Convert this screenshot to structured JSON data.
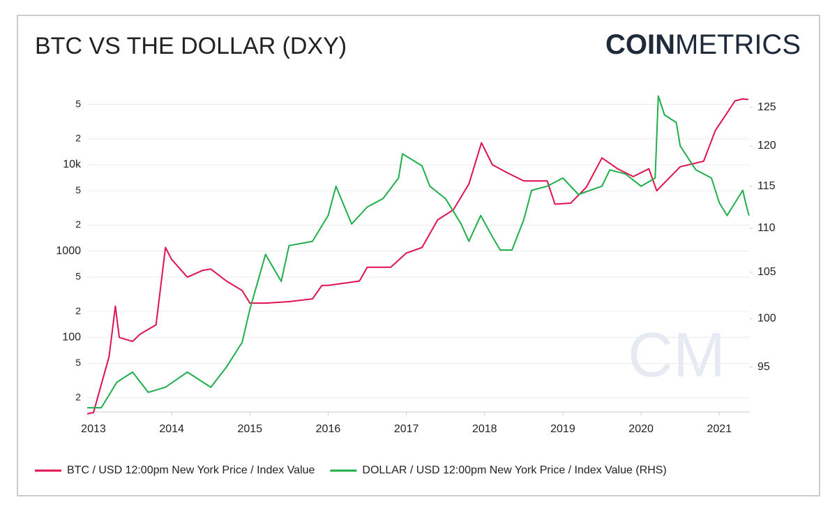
{
  "chart_data": {
    "type": "line",
    "title": "BTC VS THE DOLLAR (DXY)",
    "logo_bold": "COIN",
    "logo_light": "METRICS",
    "watermark": "CM",
    "xlim": [
      2012.92,
      2021.39
    ],
    "xticks": [
      2013,
      2014,
      2015,
      2016,
      2017,
      2018,
      2019,
      2020,
      2021
    ],
    "ylim": [
      13.7,
      72000
    ],
    "ylog": true,
    "yticks": [
      {
        "value": 20,
        "label": "2"
      },
      {
        "value": 50,
        "label": "5"
      },
      100,
      {
        "value": 200,
        "label": "2"
      },
      {
        "value": 500,
        "label": "5"
      },
      1000,
      {
        "value": 2000,
        "label": "2"
      },
      {
        "value": 5000,
        "label": "5"
      },
      {
        "value": 10000,
        "label": "10k"
      },
      {
        "value": 20000,
        "label": "2"
      },
      {
        "value": 50000,
        "label": "5"
      }
    ],
    "y2lim": [
      90.6,
      127.2
    ],
    "y2log": true,
    "y2ticks": [
      95,
      100,
      105,
      110,
      115,
      120,
      125
    ],
    "grid": true,
    "legend": "bottom",
    "series": [
      {
        "name": "BTC / USD 12:00pm New York Price / Index Value",
        "color": "#e0114f",
        "x": [
          2012.92,
          2013.0,
          2013.2,
          2013.28,
          2013.33,
          2013.5,
          2013.6,
          2013.8,
          2013.92,
          2014.0,
          2014.2,
          2014.4,
          2014.5,
          2014.7,
          2014.9,
          2015.0,
          2015.2,
          2015.5,
          2015.8,
          2015.92,
          2016.0,
          2016.4,
          2016.5,
          2016.8,
          2017.0,
          2017.2,
          2017.4,
          2017.6,
          2017.8,
          2017.96,
          2018.1,
          2018.3,
          2018.5,
          2018.8,
          2018.9,
          2019.1,
          2019.3,
          2019.5,
          2019.7,
          2019.9,
          2020.1,
          2020.2,
          2020.5,
          2020.8,
          2020.95,
          2021.1,
          2021.2,
          2021.3,
          2021.37
        ],
        "values": [
          13,
          13.5,
          60,
          230,
          100,
          90,
          110,
          140,
          1100,
          800,
          500,
          600,
          620,
          450,
          350,
          250,
          250,
          260,
          280,
          400,
          400,
          450,
          650,
          650,
          950,
          1100,
          2300,
          3000,
          6000,
          18000,
          10000,
          8000,
          6500,
          6500,
          3500,
          3600,
          5500,
          12000,
          9000,
          7300,
          9000,
          5000,
          9500,
          11000,
          25000,
          40000,
          55000,
          58000,
          57000
        ]
      },
      {
        "name": "DOLLAR / USD 12:00pm New York Price / Index Value (RHS)",
        "color": "#1fae4b",
        "axis": "y2",
        "x": [
          2012.92,
          2013.1,
          2013.3,
          2013.5,
          2013.7,
          2013.92,
          2014.2,
          2014.5,
          2014.7,
          2014.9,
          2015.0,
          2015.2,
          2015.4,
          2015.5,
          2015.8,
          2016.0,
          2016.1,
          2016.3,
          2016.5,
          2016.7,
          2016.9,
          2016.95,
          2017.2,
          2017.3,
          2017.5,
          2017.7,
          2017.8,
          2017.95,
          2018.1,
          2018.2,
          2018.35,
          2018.5,
          2018.6,
          2018.8,
          2019.0,
          2019.2,
          2019.5,
          2019.6,
          2019.8,
          2020.0,
          2020.18,
          2020.22,
          2020.3,
          2020.45,
          2020.5,
          2020.7,
          2020.9,
          2021.0,
          2021.1,
          2021.2,
          2021.3,
          2021.35,
          2021.38
        ],
        "values": [
          91,
          91,
          93.5,
          94.5,
          92.5,
          93,
          94.5,
          93,
          95,
          97.5,
          101,
          107,
          104,
          108,
          108.5,
          111.5,
          115,
          110.5,
          112.5,
          113.5,
          116,
          119,
          117.5,
          115,
          113.5,
          110.5,
          108.5,
          111.5,
          109,
          107.5,
          107.5,
          111,
          114.5,
          115,
          116,
          114,
          115,
          117,
          116.5,
          115,
          116,
          126.5,
          124,
          123,
          120,
          117,
          116,
          113,
          111.5,
          113,
          114.5,
          112.5,
          111.5
        ]
      }
    ]
  }
}
